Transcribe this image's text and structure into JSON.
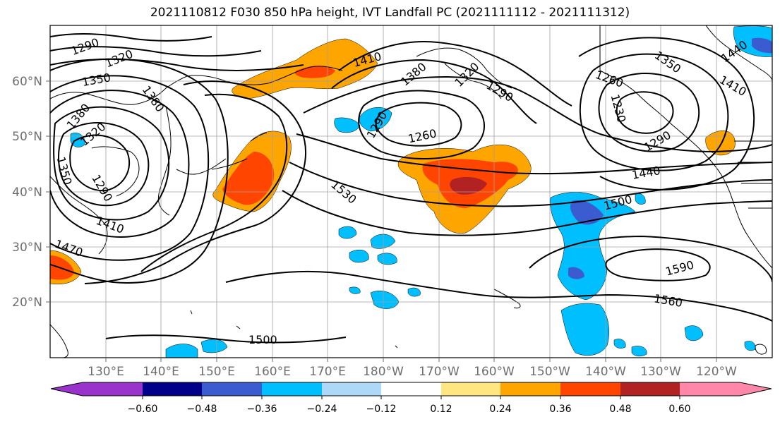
{
  "title": "2021110812 F030 850 hPa height, IVT Landfall PC (2021111112 - 2021111312)",
  "lat_labels": [
    "60°N",
    "50°N",
    "40°N",
    "30°N",
    "20°N"
  ],
  "lon_labels": [
    "130°E",
    "140°E",
    "150°E",
    "160°E",
    "170°E",
    "180°W",
    "170°W",
    "160°W",
    "150°W",
    "140°W",
    "130°W",
    "120°W"
  ],
  "colorbar": {
    "ticks": [
      "−0.60",
      "−0.48",
      "−0.36",
      "−0.24",
      "−0.12",
      "0.12",
      "0.24",
      "0.36",
      "0.48",
      "0.60"
    ],
    "colors": [
      "#9933cc",
      "#00008b",
      "#3b5bd0",
      "#00bfff",
      "#add8f7",
      "#ffffff",
      "#ffe680",
      "#ffa500",
      "#ff4500",
      "#b22222",
      "#ff88aa"
    ]
  },
  "contour_labels": [
    {
      "text": "1290"
    },
    {
      "text": "1320"
    },
    {
      "text": "1350"
    },
    {
      "text": "1380"
    },
    {
      "text": "1320"
    },
    {
      "text": "1350"
    },
    {
      "text": "1290"
    },
    {
      "text": "1380"
    },
    {
      "text": "1410"
    },
    {
      "text": "1380"
    },
    {
      "text": "1320"
    },
    {
      "text": "1290"
    },
    {
      "text": "1260"
    },
    {
      "text": "1290"
    },
    {
      "text": "1530"
    },
    {
      "text": "1470"
    },
    {
      "text": "1410"
    },
    {
      "text": "1260"
    },
    {
      "text": "1230"
    },
    {
      "text": "1350"
    },
    {
      "text": "1410"
    },
    {
      "text": "1440"
    },
    {
      "text": "1440"
    },
    {
      "text": "1500"
    },
    {
      "text": "1590"
    },
    {
      "text": "1560"
    },
    {
      "text": "1500"
    },
    {
      "text": "1290"
    }
  ]
}
